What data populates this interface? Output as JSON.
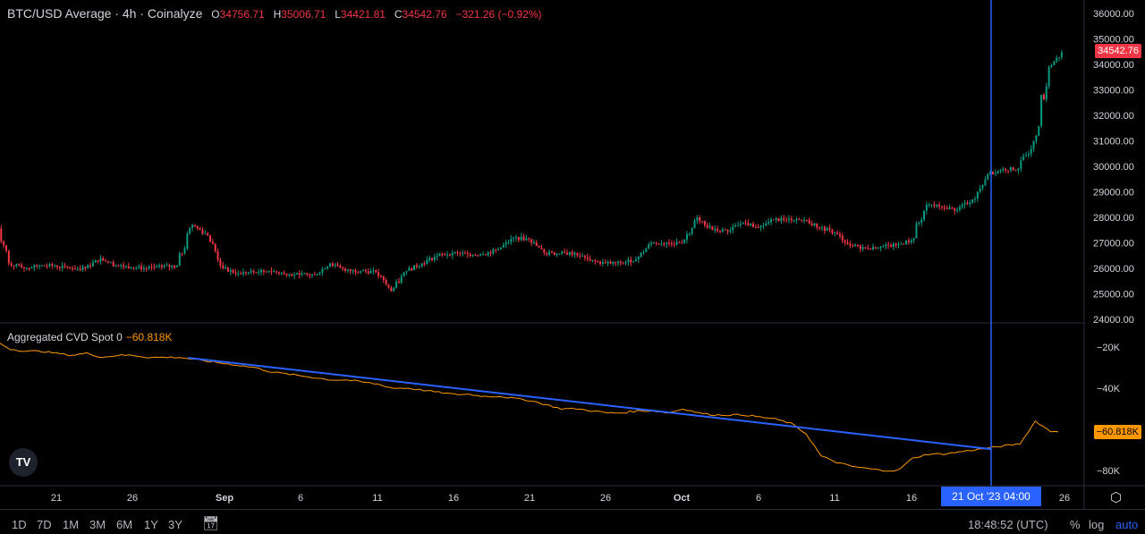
{
  "header": {
    "symbol": "BTC/USD Average · 4h · Coinalyze",
    "o_label": "O",
    "o": "34756.71",
    "h_label": "H",
    "h": "35006.71",
    "l_label": "L",
    "l": "34421.81",
    "c_label": "C",
    "c": "34542.76",
    "change": "−321.26 (−0.92%)"
  },
  "cvd_legend": {
    "name": "Aggregated CVD Spot 0",
    "value": "−60.818K"
  },
  "last_price_label": "34542.76",
  "cvd_last_label": "−60.818K",
  "crosshair_date": "21 Oct '23   04:00",
  "bottom": {
    "ranges": [
      "1D",
      "7D",
      "1M",
      "3M",
      "6M",
      "1Y",
      "3Y"
    ],
    "clock": "18:48:52 (UTC)",
    "percent": "%",
    "log": "log",
    "auto": "auto"
  },
  "colors": {
    "up": "#089981",
    "down": "#f23645",
    "cvd": "#ff9800",
    "crosshair": "#2962ff",
    "trend": "#2962ff"
  },
  "chart_data": [
    {
      "type": "candlestick",
      "title": "BTC/USD Average · 4h · Coinalyze",
      "start_day": "Aug 17",
      "daily_close": [
        26200,
        26000,
        26100,
        26100,
        26000,
        26000,
        26400,
        26100,
        26050,
        26000,
        26050,
        26100,
        27700,
        27300,
        26000,
        25800,
        25850,
        25900,
        25800,
        25750,
        25750,
        26200,
        25900,
        25900,
        25850,
        25100,
        25900,
        26200,
        26500,
        26600,
        26550,
        26550,
        26750,
        27200,
        27150,
        26600,
        26580,
        26600,
        26300,
        26200,
        26200,
        26350,
        27000,
        27000,
        27000,
        28000,
        27500,
        27450,
        27800,
        27600,
        27900,
        27950,
        27900,
        27600,
        27400,
        26900,
        26800,
        26850,
        26900,
        27100,
        28500,
        28400,
        28300,
        28700,
        29700,
        29900,
        29900,
        31000,
        33900,
        34543
      ],
      "y_ticks": [
        24000,
        25000,
        26000,
        27000,
        28000,
        29000,
        30000,
        31000,
        32000,
        33000,
        34000,
        35000,
        36000
      ],
      "ylim": [
        24000,
        36000
      ]
    },
    {
      "type": "line",
      "title": "Aggregated CVD Spot 0",
      "unit": "K",
      "daily": [
        -17,
        -21,
        -22,
        -22,
        -23,
        -24,
        -23,
        -25,
        -24,
        -24,
        -25,
        -25,
        -25,
        -26,
        -27,
        -28,
        -29,
        -30,
        -32,
        -33,
        -34,
        -35,
        -36,
        -36,
        -37,
        -38,
        -40,
        -40,
        -41,
        -42,
        -43,
        -43,
        -44,
        -44,
        -45,
        -46,
        -48,
        -50,
        -50,
        -51,
        -52,
        -52,
        -51,
        -51,
        -52,
        -50,
        -52,
        -53,
        -53,
        -53,
        -54,
        -55,
        -57,
        -62,
        -73,
        -76,
        -78,
        -79,
        -80,
        -80,
        -74,
        -72,
        -72,
        -71,
        -70,
        -69,
        -68,
        -67,
        -56,
        -61
      ],
      "y_ticks": [
        -20,
        -40,
        -60,
        -80
      ],
      "ylim": [
        -88,
        -10
      ],
      "trendline": {
        "from": {
          "day": "Aug 29",
          "value": -25.2
        },
        "to": {
          "day": "Oct 21 04:00",
          "value": -69.6
        }
      }
    },
    {
      "x_ticks": [
        "21",
        "26",
        "Sep",
        "6",
        "11",
        "16",
        "21",
        "26",
        "Oct",
        "6",
        "11",
        "16",
        "26"
      ]
    }
  ]
}
